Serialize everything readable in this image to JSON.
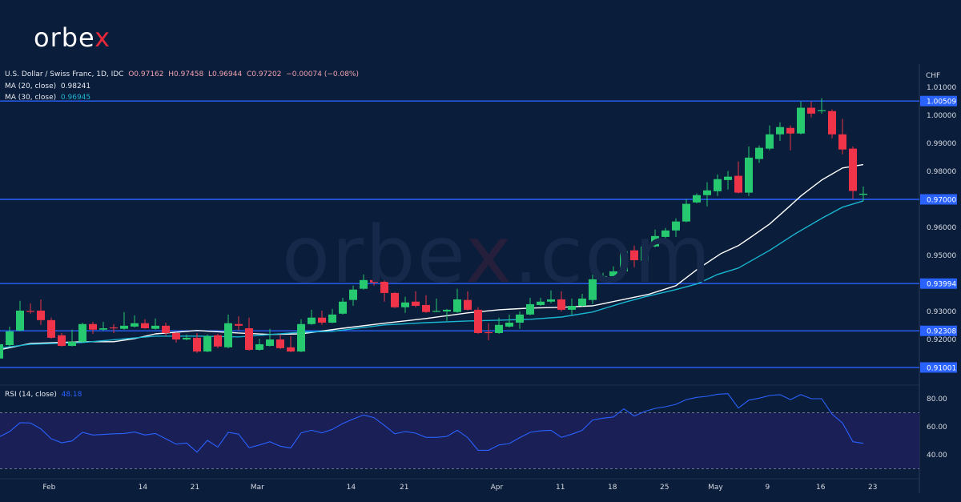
{
  "logo": {
    "text_main": "orbe",
    "text_accent": "x"
  },
  "watermark": {
    "text_main": "orbe",
    "text_accent": "x",
    "text_tail": ".com"
  },
  "legend": {
    "symbol": "U.S. Dollar / Swiss Franc, 1D, IDC",
    "open": "O0.97162",
    "high": "H0.97458",
    "low": "L0.96944",
    "close": "C0.97202",
    "change": "−0.00074 (−0.08%)",
    "ma20_label": "MA (20, close)",
    "ma20_value": "0.98241",
    "ma30_label": "MA (30, close)",
    "ma30_value": "0.96945",
    "rsi_label": "RSI (14, close)",
    "rsi_value": "48.18"
  },
  "colors": {
    "background": "#0a1d3a",
    "up": "#26c96f",
    "down": "#ef3348",
    "ma20": "#ffffff",
    "ma30": "#19b6d2",
    "level": "#2962ff",
    "rsi": "#2962ff",
    "rsi_band": "#1a1f55"
  },
  "chart_data": [
    {
      "type": "candlestick",
      "title": "U.S. Dollar / Swiss Franc, 1D, IDC",
      "ylabel": "CHF",
      "ylim": [
        0.905,
        1.013
      ],
      "grid": false,
      "x_tick_labels": [
        "Feb",
        "14",
        "21",
        "Mar",
        "14",
        "21",
        "Apr",
        "11",
        "18",
        "25",
        "May",
        "9",
        "16",
        "23"
      ],
      "y_tick_labels": [
        "1.01000",
        "1.00000",
        "0.99000",
        "0.98000",
        "0.96000",
        "0.95000",
        "0.93000",
        "0.92000"
      ],
      "levels": [
        "1.00509",
        "0.97000",
        "0.93994",
        "0.92308",
        "0.91001"
      ],
      "ohlc": [
        [
          0.9132,
          0.9197,
          0.912,
          0.9183
        ],
        [
          0.918,
          0.9246,
          0.9175,
          0.9229
        ],
        [
          0.9232,
          0.9338,
          0.9229,
          0.9303
        ],
        [
          0.9302,
          0.9329,
          0.9292,
          0.93
        ],
        [
          0.9303,
          0.9343,
          0.9252,
          0.9269
        ],
        [
          0.9269,
          0.9278,
          0.9203,
          0.9206
        ],
        [
          0.9215,
          0.9223,
          0.9175,
          0.9177
        ],
        [
          0.9177,
          0.9235,
          0.9175,
          0.9192
        ],
        [
          0.9192,
          0.926,
          0.9189,
          0.9255
        ],
        [
          0.9255,
          0.9263,
          0.922,
          0.9235
        ],
        [
          0.9235,
          0.9263,
          0.9232,
          0.924
        ],
        [
          0.9243,
          0.9255,
          0.9223,
          0.9242
        ],
        [
          0.9238,
          0.9298,
          0.9235,
          0.9249
        ],
        [
          0.9246,
          0.9286,
          0.9243,
          0.9258
        ],
        [
          0.9258,
          0.9272,
          0.9238,
          0.924
        ],
        [
          0.9238,
          0.9275,
          0.9235,
          0.9249
        ],
        [
          0.9249,
          0.926,
          0.9212,
          0.9223
        ],
        [
          0.9223,
          0.9226,
          0.9189,
          0.92
        ],
        [
          0.92,
          0.9218,
          0.9197,
          0.9206
        ],
        [
          0.9206,
          0.9223,
          0.9152,
          0.9157
        ],
        [
          0.9157,
          0.9218,
          0.9155,
          0.9212
        ],
        [
          0.9215,
          0.922,
          0.9169,
          0.9175
        ],
        [
          0.9172,
          0.9289,
          0.9169,
          0.9258
        ],
        [
          0.9255,
          0.9283,
          0.9232,
          0.9249
        ],
        [
          0.924,
          0.9278,
          0.916,
          0.9163
        ],
        [
          0.9163,
          0.9203,
          0.916,
          0.9183
        ],
        [
          0.9177,
          0.9238,
          0.9175,
          0.92
        ],
        [
          0.92,
          0.9218,
          0.9166,
          0.9169
        ],
        [
          0.9172,
          0.9212,
          0.9155,
          0.9157
        ],
        [
          0.9157,
          0.9272,
          0.9155,
          0.9255
        ],
        [
          0.9255,
          0.9306,
          0.9252,
          0.9278
        ],
        [
          0.9278,
          0.9303,
          0.9252,
          0.926
        ],
        [
          0.926,
          0.9309,
          0.9258,
          0.9289
        ],
        [
          0.9292,
          0.9349,
          0.9289,
          0.9335
        ],
        [
          0.9341,
          0.9392,
          0.932,
          0.9378
        ],
        [
          0.9381,
          0.9432,
          0.9378,
          0.9412
        ],
        [
          0.9412,
          0.9461,
          0.9392,
          0.9403
        ],
        [
          0.9406,
          0.9429,
          0.9335,
          0.9366
        ],
        [
          0.9366,
          0.9369,
          0.9312,
          0.9315
        ],
        [
          0.9315,
          0.9352,
          0.9295,
          0.9332
        ],
        [
          0.9335,
          0.9372,
          0.9315,
          0.932
        ],
        [
          0.9323,
          0.9358,
          0.9295,
          0.9298
        ],
        [
          0.93,
          0.9346,
          0.9298,
          0.9302
        ],
        [
          0.93,
          0.9309,
          0.9266,
          0.9306
        ],
        [
          0.9298,
          0.9381,
          0.9295,
          0.9343
        ],
        [
          0.9341,
          0.9372,
          0.9303,
          0.9306
        ],
        [
          0.9306,
          0.9315,
          0.922,
          0.9223
        ],
        [
          0.9226,
          0.9258,
          0.9197,
          0.9225
        ],
        [
          0.9223,
          0.9278,
          0.922,
          0.9252
        ],
        [
          0.9246,
          0.9289,
          0.9243,
          0.926
        ],
        [
          0.926,
          0.93,
          0.9238,
          0.9289
        ],
        [
          0.9289,
          0.9349,
          0.9286,
          0.9326
        ],
        [
          0.9323,
          0.9349,
          0.932,
          0.9335
        ],
        [
          0.9335,
          0.9375,
          0.9329,
          0.9343
        ],
        [
          0.9343,
          0.9372,
          0.93,
          0.9306
        ],
        [
          0.9306,
          0.9346,
          0.9289,
          0.932
        ],
        [
          0.932,
          0.9363,
          0.9318,
          0.9346
        ],
        [
          0.9341,
          0.9432,
          0.9326,
          0.9415
        ],
        [
          0.9418,
          0.9438,
          0.9415,
          0.9426
        ],
        [
          0.9426,
          0.9461,
          0.9423,
          0.9443
        ],
        [
          0.9443,
          0.9526,
          0.944,
          0.9515
        ],
        [
          0.9518,
          0.9535,
          0.9458,
          0.9483
        ],
        [
          0.9481,
          0.9552,
          0.9461,
          0.9532
        ],
        [
          0.9532,
          0.9592,
          0.9529,
          0.9569
        ],
        [
          0.9566,
          0.9598,
          0.9538,
          0.9589
        ],
        [
          0.9589,
          0.9632,
          0.9566,
          0.9621
        ],
        [
          0.9621,
          0.9701,
          0.9618,
          0.9684
        ],
        [
          0.9689,
          0.9721,
          0.9686,
          0.9715
        ],
        [
          0.9715,
          0.9761,
          0.9675,
          0.9732
        ],
        [
          0.9729,
          0.9789,
          0.9712,
          0.9772
        ],
        [
          0.9769,
          0.9801,
          0.9735,
          0.9781
        ],
        [
          0.9784,
          0.9835,
          0.9721,
          0.9724
        ],
        [
          0.9724,
          0.9889,
          0.9712,
          0.9849
        ],
        [
          0.9844,
          0.9892,
          0.983,
          0.9884
        ],
        [
          0.9881,
          0.9964,
          0.9875,
          0.9932
        ],
        [
          0.9932,
          0.9975,
          0.9909,
          0.9958
        ],
        [
          0.9955,
          0.9964,
          0.9875,
          0.9935
        ],
        [
          0.9935,
          1.0049,
          0.9932,
          1.0027
        ],
        [
          1.0027,
          1.0049,
          0.9992,
          1.0006
        ],
        [
          1.0016,
          1.0061,
          1.0006,
          1.0018
        ],
        [
          1.0015,
          1.0021,
          0.9918,
          0.9932
        ],
        [
          0.9932,
          0.9987,
          0.9861,
          0.9878
        ],
        [
          0.9881,
          0.9889,
          0.9701,
          0.973
        ],
        [
          0.97162,
          0.97458,
          0.96944,
          0.97202
        ]
      ],
      "series": [
        {
          "name": "MA (20, close)",
          "points": [
            [
              0,
              0.9163
            ],
            [
              3,
              0.9186
            ],
            [
              8,
              0.9192
            ],
            [
              11,
              0.9192
            ],
            [
              13,
              0.9203
            ],
            [
              15,
              0.922
            ],
            [
              19,
              0.9232
            ],
            [
              23,
              0.9223
            ],
            [
              26,
              0.9218
            ],
            [
              29,
              0.922
            ],
            [
              33,
              0.924
            ],
            [
              37,
              0.9258
            ],
            [
              41,
              0.9275
            ],
            [
              45,
              0.9295
            ],
            [
              48,
              0.9306
            ],
            [
              51,
              0.9312
            ],
            [
              54,
              0.9315
            ],
            [
              57,
              0.932
            ],
            [
              60,
              0.9343
            ],
            [
              62.4,
              0.9361
            ],
            [
              65,
              0.9392
            ],
            [
              67,
              0.9449
            ],
            [
              69.3,
              0.9506
            ],
            [
              71,
              0.9535
            ],
            [
              72,
              0.956
            ],
            [
              74,
              0.9612
            ],
            [
              76,
              0.9678
            ],
            [
              77,
              0.9712
            ],
            [
              79,
              0.9769
            ],
            [
              81,
              0.9812
            ],
            [
              83,
              0.98241
            ]
          ]
        },
        {
          "name": "MA (30, close)",
          "points": [
            [
              0,
              0.9169
            ],
            [
              3,
              0.9183
            ],
            [
              8,
              0.9189
            ],
            [
              15,
              0.9212
            ],
            [
              19,
              0.9212
            ],
            [
              23,
              0.9209
            ],
            [
              29,
              0.9226
            ],
            [
              32,
              0.9229
            ],
            [
              37,
              0.9252
            ],
            [
              41,
              0.926
            ],
            [
              45,
              0.9266
            ],
            [
              48,
              0.9269
            ],
            [
              51,
              0.9272
            ],
            [
              54,
              0.928
            ],
            [
              57,
              0.9298
            ],
            [
              60,
              0.9332
            ],
            [
              62,
              0.9352
            ],
            [
              65,
              0.9378
            ],
            [
              67,
              0.9398
            ],
            [
              69,
              0.9432
            ],
            [
              71,
              0.9455
            ],
            [
              74,
              0.9518
            ],
            [
              76.5,
              0.9578
            ],
            [
              79,
              0.9632
            ],
            [
              81,
              0.9672
            ],
            [
              83,
              0.96945
            ]
          ]
        }
      ]
    },
    {
      "type": "line",
      "title": "RSI (14, close)",
      "ylim": [
        23,
        88
      ],
      "band": [
        30,
        70
      ],
      "y_tick_labels": [
        "80.00",
        "60.00",
        "40.00"
      ],
      "series": [
        {
          "name": "RSI (14, close)",
          "values": [
            52.8,
            56.6,
            62.9,
            62.7,
            58.5,
            51.4,
            48.6,
            49.9,
            56,
            54.1,
            54.5,
            55,
            55.2,
            56.2,
            54.1,
            55.2,
            51.4,
            47.6,
            48.4,
            41.9,
            50.3,
            45.5,
            56,
            54.7,
            45.1,
            47,
            49.3,
            46.1,
            44.8,
            55.6,
            57.5,
            55.6,
            58.1,
            62.3,
            65.5,
            68.4,
            66.5,
            61,
            55,
            56.6,
            55.4,
            52.4,
            52.4,
            53.1,
            57.5,
            52.2,
            43.2,
            43.2,
            47,
            48,
            52.2,
            56,
            57.1,
            57.5,
            52.4,
            54.7,
            57.5,
            64.8,
            66.1,
            67,
            72.8,
            67.6,
            70.9,
            73.1,
            74.3,
            76,
            79.4,
            81,
            81.7,
            83.2,
            83.6,
            73.3,
            79,
            80.4,
            82.3,
            82.9,
            79.4,
            82.9,
            80,
            80,
            69,
            62.7,
            49.3,
            48.18
          ]
        }
      ]
    }
  ]
}
